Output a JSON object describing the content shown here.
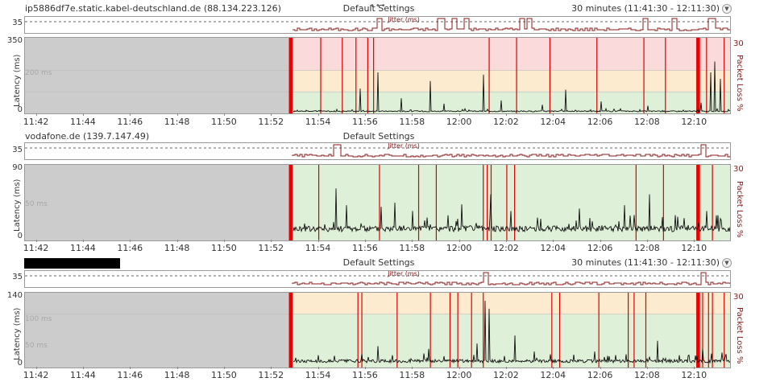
{
  "charts": [
    {
      "host": "ip5886df7e.static.kabel-deutschland.de (88.134.223.126)",
      "redacted": false,
      "profile": "Default Settings",
      "time_range": "30 minutes (11:41:30 - 12:11:30)",
      "jitter_title": "Jitter (ms)",
      "jitter_tick": "35",
      "y_axis_label": "Latency (ms)",
      "y_axis_right_label": "Packet Loss %",
      "y_max_label": "350",
      "y_zero_label": "0",
      "y_right_label": "30",
      "ref_line_label": "200 ms",
      "second_ref_label": ""
    },
    {
      "host": "vodafone.de (139.7.147.49)",
      "redacted": false,
      "profile": "Default Settings",
      "time_range": "30 minutes (11:41:30 - 12:11:30)",
      "jitter_title": "Jitter (ms)",
      "jitter_tick": "35",
      "y_axis_label": "Latency (ms)",
      "y_axis_right_label": "Packet Loss %",
      "y_max_label": "90",
      "y_zero_label": "0",
      "y_right_label": "30",
      "ref_line_label": "50 ms",
      "second_ref_label": ""
    },
    {
      "host": "",
      "redacted": true,
      "profile": "Default Settings",
      "time_range": "30 minutes (11:41:30 - 12:11:30)",
      "jitter_title": "Jitter (ms)",
      "jitter_tick": "35",
      "y_axis_label": "Latency (ms)",
      "y_axis_right_label": "Packet Loss %",
      "y_max_label": "140",
      "y_zero_label": "0",
      "y_right_label": "30",
      "ref_line_label": "100 ms",
      "second_ref_label": "50 ms"
    }
  ],
  "chart_data": [
    {
      "type": "line",
      "title": "ip5886df7e.static.kabel-deutschland.de (88.134.223.126)",
      "x_range": [
        "11:41:30",
        "12:11:30"
      ],
      "x_ticks": [
        "11:42",
        "11:44",
        "11:46",
        "11:48",
        "11:50",
        "11:52",
        "11:54",
        "11:56",
        "11:58",
        "12:00",
        "12:02",
        "12:04",
        "12:06",
        "12:08",
        "12:10"
      ],
      "ylabel": "Latency (ms)",
      "ylim": [
        0,
        350
      ],
      "y2label": "Packet Loss %",
      "y2_max": 30,
      "no_data_until": "11:52:45",
      "zones": [
        {
          "from": 0,
          "to": 100,
          "color": "#dff0d8"
        },
        {
          "from": 100,
          "to": 200,
          "color": "#fdebd0"
        },
        {
          "from": 200,
          "to": 350,
          "color": "#fadadb"
        }
      ],
      "baseline_latency": 10,
      "latency_spikes": [
        {
          "t": "11:55:45",
          "v": 115
        },
        {
          "t": "11:56:30",
          "v": 190
        },
        {
          "t": "11:57:30",
          "v": 70
        },
        {
          "t": "11:58:45",
          "v": 150
        },
        {
          "t": "11:59:20",
          "v": 45
        },
        {
          "t": "12:01:00",
          "v": 180
        },
        {
          "t": "12:01:45",
          "v": 60
        },
        {
          "t": "12:03:30",
          "v": 40
        },
        {
          "t": "12:04:30",
          "v": 110
        },
        {
          "t": "12:06:00",
          "v": 55
        },
        {
          "t": "12:08:00",
          "v": 35
        },
        {
          "t": "12:10:15",
          "v": 50
        },
        {
          "t": "12:10:40",
          "v": 190
        },
        {
          "t": "12:10:50",
          "v": 240
        },
        {
          "t": "12:11:05",
          "v": 160
        }
      ],
      "packet_loss_events": [
        "11:52:45",
        "11:54:05",
        "11:55:00",
        "11:55:35",
        "11:56:05",
        "11:56:20",
        "12:01:15",
        "12:02:25",
        "12:03:50",
        "12:05:50",
        "12:07:50",
        "12:08:45",
        "12:10:05",
        "12:10:30",
        "12:11:15"
      ],
      "packet_loss_bursts": [
        "11:52:45",
        "12:10:05"
      ],
      "jitter_spikes": [
        "11:56:30",
        "11:59:10",
        "11:59:45",
        "12:00:15",
        "12:02:35",
        "12:02:55",
        "12:07:50",
        "12:09:05",
        "12:10:40"
      ],
      "jitter_tick": 35
    },
    {
      "type": "line",
      "title": "vodafone.de (139.7.147.49)",
      "x_range": [
        "11:41:30",
        "12:11:30"
      ],
      "x_ticks": [
        "11:42",
        "11:44",
        "11:46",
        "11:48",
        "11:50",
        "11:52",
        "11:54",
        "11:56",
        "11:58",
        "12:00",
        "12:02",
        "12:04",
        "12:06",
        "12:08",
        "12:10"
      ],
      "ylabel": "Latency (ms)",
      "ylim": [
        0,
        90
      ],
      "y2label": "Packet Loss %",
      "y2_max": 30,
      "no_data_until": "11:52:45",
      "zones": [
        {
          "from": 0,
          "to": 90,
          "color": "#dff0d8"
        }
      ],
      "baseline_latency": 14,
      "latency_spikes": [
        {
          "t": "11:54:45",
          "v": 62
        },
        {
          "t": "11:55:10",
          "v": 42
        },
        {
          "t": "11:56:40",
          "v": 40
        },
        {
          "t": "11:57:15",
          "v": 45
        },
        {
          "t": "11:58:00",
          "v": 35
        },
        {
          "t": "11:59:30",
          "v": 30
        },
        {
          "t": "12:00:05",
          "v": 43
        },
        {
          "t": "12:01:20",
          "v": 55
        },
        {
          "t": "12:02:10",
          "v": 35
        },
        {
          "t": "12:05:05",
          "v": 38
        },
        {
          "t": "12:07:00",
          "v": 42
        },
        {
          "t": "12:08:05",
          "v": 55
        },
        {
          "t": "12:10:30",
          "v": 35
        },
        {
          "t": "12:11:00",
          "v": 30
        }
      ],
      "packet_loss_events": [
        "11:52:45",
        "11:54:00",
        "11:56:35",
        "11:58:15",
        "11:59:00",
        "12:01:00",
        "12:01:10",
        "12:01:20",
        "12:02:00",
        "12:02:20",
        "12:07:30",
        "12:08:40",
        "12:10:05",
        "12:10:45"
      ],
      "packet_loss_bursts": [
        "11:52:45",
        "12:10:05"
      ],
      "jitter_spikes": [
        "11:54:45",
        "12:10:20"
      ],
      "jitter_tick": 35
    },
    {
      "type": "line",
      "title": "",
      "x_range": [
        "11:41:30",
        "12:11:30"
      ],
      "x_ticks": [
        "11:42",
        "11:44",
        "11:46",
        "11:48",
        "11:50",
        "11:52",
        "11:54",
        "11:56",
        "11:58",
        "12:00",
        "12:02",
        "12:04",
        "12:06",
        "12:08",
        "12:10"
      ],
      "ylabel": "Latency (ms)",
      "ylim": [
        0,
        140
      ],
      "y2label": "Packet Loss %",
      "y2_max": 30,
      "no_data_until": "11:52:45",
      "zones": [
        {
          "from": 0,
          "to": 100,
          "color": "#dff0d8"
        },
        {
          "from": 100,
          "to": 140,
          "color": "#fdebd0"
        }
      ],
      "baseline_latency": 12,
      "latency_spikes": [
        {
          "t": "11:56:30",
          "v": 40
        },
        {
          "t": "11:58:40",
          "v": 35
        },
        {
          "t": "12:00:45",
          "v": 45
        },
        {
          "t": "12:01:05",
          "v": 125
        },
        {
          "t": "12:01:15",
          "v": 110
        },
        {
          "t": "12:02:20",
          "v": 60
        },
        {
          "t": "12:03:10",
          "v": 30
        },
        {
          "t": "12:05:45",
          "v": 30
        },
        {
          "t": "12:08:25",
          "v": 50
        },
        {
          "t": "12:10:20",
          "v": 35
        },
        {
          "t": "12:11:10",
          "v": 28
        }
      ],
      "packet_loss_events": [
        "11:52:45",
        "11:55:40",
        "11:55:50",
        "11:57:20",
        "11:58:45",
        "11:59:35",
        "11:59:55",
        "12:00:30",
        "12:01:00",
        "12:03:55",
        "12:04:15",
        "12:05:55",
        "12:07:10",
        "12:07:25",
        "12:07:55",
        "12:10:05",
        "12:10:20",
        "12:10:35",
        "12:10:45",
        "12:11:15"
      ],
      "packet_loss_bursts": [
        "11:52:45",
        "12:10:05"
      ],
      "jitter_spikes": [
        "12:01:05",
        "12:10:20"
      ],
      "jitter_tick": 35
    }
  ]
}
